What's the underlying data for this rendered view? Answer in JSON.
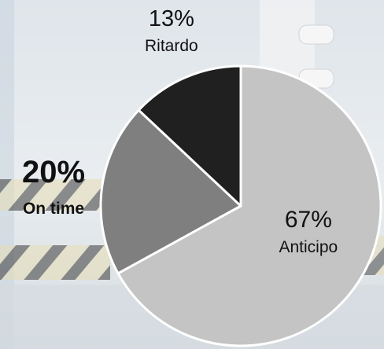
{
  "chart_data": {
    "type": "pie",
    "slices": [
      {
        "label": "Anticipo",
        "percent_label": "67%",
        "value": 67,
        "color": "#c4c4c4"
      },
      {
        "label": "On time",
        "percent_label": "20%",
        "value": 20,
        "color": "#7f7f7f"
      },
      {
        "label": "Ritardo",
        "percent_label": "13%",
        "value": 13,
        "color": "#202020"
      }
    ],
    "start_angle_deg": 0,
    "direction": "clockwise",
    "legend": "none"
  }
}
